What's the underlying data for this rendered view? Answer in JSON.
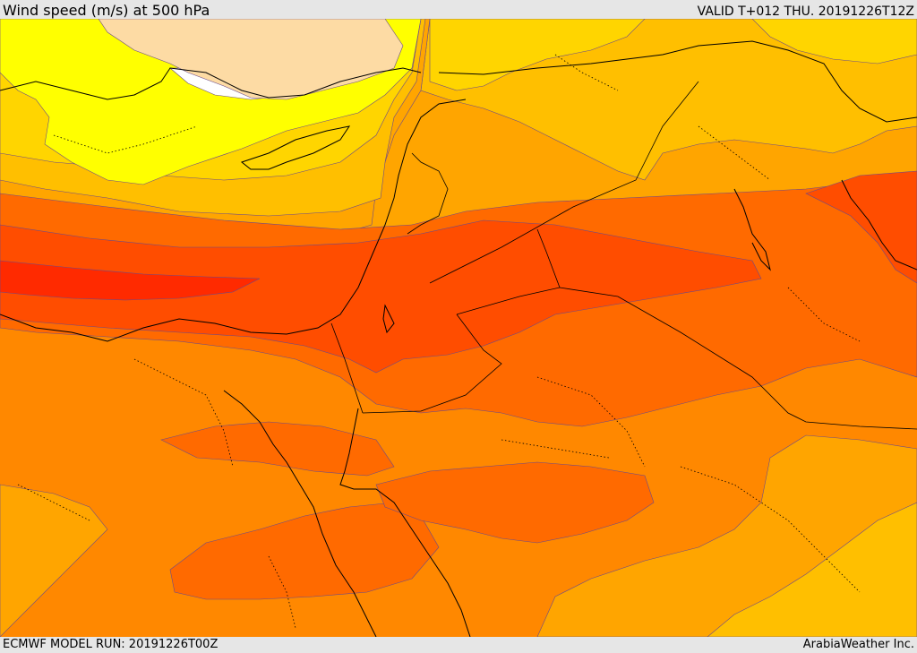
{
  "header": {
    "title": "Wind speed (m/s) at 500 hPa",
    "valid": "VALID T+012 THU. 20191226T12Z"
  },
  "footer": {
    "model_run": "ECMWF MODEL RUN: 20191226T00Z",
    "credit": "ArabiaWeather Inc."
  },
  "map": {
    "field": "wind speed",
    "level_hpa": 500,
    "colors": {
      "light_tan": "#fddba4",
      "white": "#ffffff",
      "yellow": "#ffff00",
      "gold": "#ffd500",
      "amber": "#ffbf00",
      "orange_light": "#ffa500",
      "orange": "#ff8800",
      "orange_dark": "#ff6a00",
      "red_orange": "#ff4d00",
      "red": "#ff2a00",
      "coastline": "#000000",
      "contour": "#6a4a8a"
    }
  }
}
